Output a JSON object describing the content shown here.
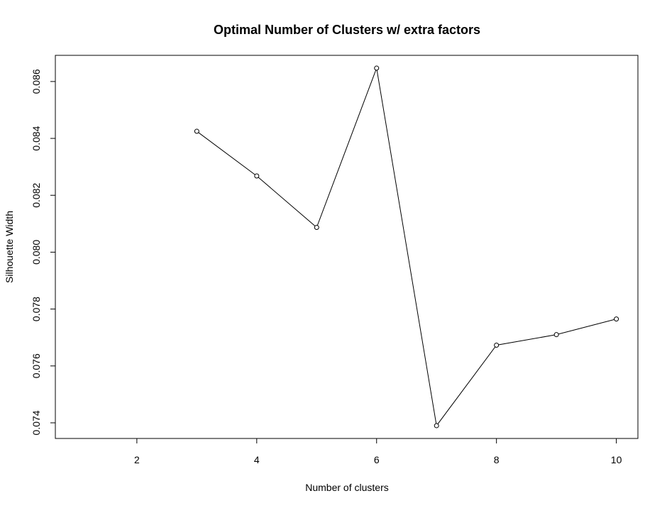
{
  "chart_data": {
    "type": "line",
    "title": "Optimal Number of Clusters w/ extra factors",
    "xlabel": "Number of clusters",
    "ylabel": "Silhouette Width",
    "x": [
      3,
      4,
      5,
      6,
      7,
      8,
      9,
      10
    ],
    "series": [
      {
        "values": [
          0.08425,
          0.08268,
          0.08087,
          0.08647,
          0.0739,
          0.07673,
          0.0771,
          0.07765
        ]
      }
    ],
    "xlim": [
      0.64,
      10.36
    ],
    "ylim": [
      0.07345,
      0.08692
    ],
    "xticks": [
      2,
      4,
      6,
      8,
      10
    ],
    "xtick_labels": [
      "2",
      "4",
      "6",
      "8",
      "10"
    ],
    "yticks": [
      0.074,
      0.076,
      0.078,
      0.08,
      0.082,
      0.084,
      0.086
    ],
    "ytick_labels": [
      "0.074",
      "0.076",
      "0.078",
      "0.080",
      "0.082",
      "0.084",
      "0.086"
    ],
    "grid": false,
    "legend": "none",
    "line_color": "#000000",
    "marker": "open-circle"
  }
}
